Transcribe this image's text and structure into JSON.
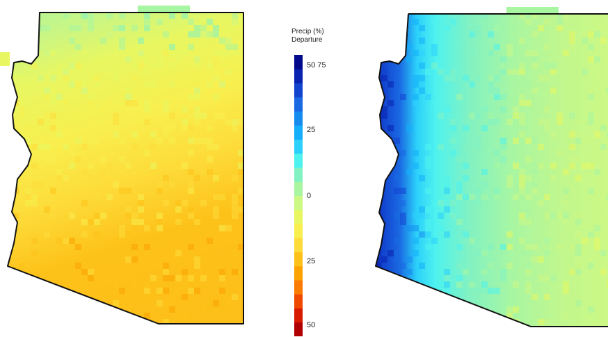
{
  "legend": {
    "title_line1": "Precip (%)",
    "title_line2": "Departure",
    "ticks": [
      {
        "label": "50 75",
        "value": 75
      },
      {
        "label": "25",
        "value": 25
      },
      {
        "label": "0",
        "value": 0
      },
      {
        "label": "25",
        "value": -25
      },
      {
        "label": "50",
        "value": -50
      }
    ],
    "colors": [
      "#b00000",
      "#d71a00",
      "#f04a00",
      "#fb7a00",
      "#fca300",
      "#fdc21a",
      "#fddc3a",
      "#f8ef4e",
      "#e8f761",
      "#ccf885",
      "#a8f6a2",
      "#82f2c2",
      "#4ef2ee",
      "#2bd0fb",
      "#14aefa",
      "#168dee",
      "#1a69e2",
      "#1244cf",
      "#0a22b0",
      "#000a8a"
    ]
  },
  "maps": [
    {
      "name": "left-map",
      "dominant_colors": [
        "#a8f6a2",
        "#e8f761",
        "#f8ef4e",
        "#fddc3a",
        "#fdc21a"
      ]
    },
    {
      "name": "right-map",
      "dominant_colors": [
        "#000a8a",
        "#1a69e2",
        "#4ef2ee",
        "#a8f6a2",
        "#ccf885"
      ]
    }
  ]
}
